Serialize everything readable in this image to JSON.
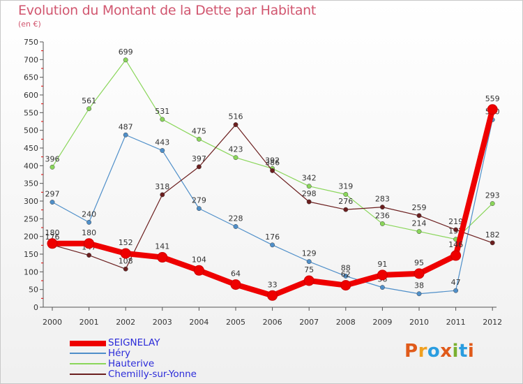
{
  "title": "Evolution du Montant de la Dette par Habitant",
  "subtitle": "(en €)",
  "logo": {
    "text": "Proxiti",
    "colors": [
      "#e05a1a",
      "#f0a020",
      "#2a9de0",
      "#e05a1a",
      "#7ab030",
      "#2a9de0",
      "#e05a1a"
    ]
  },
  "chart_data": {
    "type": "line",
    "title": "Evolution du Montant de la Dette par Habitant",
    "subtitle": "(en €)",
    "xlabel": "",
    "ylabel": "",
    "ylim": [
      0,
      750
    ],
    "ytick_step": 50,
    "grid": false,
    "legend_position": "bottom-left",
    "categories": [
      "2000",
      "2001",
      "2002",
      "2003",
      "2004",
      "2005",
      "2006",
      "2007",
      "2008",
      "2009",
      "2010",
      "2011",
      "2012"
    ],
    "y_ticks": [
      "0",
      "50",
      "100",
      "150",
      "200",
      "250",
      "300",
      "350",
      "400",
      "450",
      "500",
      "550",
      "600",
      "650",
      "700",
      "750"
    ],
    "series": [
      {
        "name": "Hauterive",
        "color": "#8ad65a",
        "values": [
          396,
          561,
          699,
          531,
          475,
          423,
          392,
          342,
          319,
          236,
          214,
          192,
          293
        ],
        "labels": [
          "396",
          "561",
          "699",
          "531",
          "475",
          "423",
          "392",
          "342",
          "319",
          "236",
          "214",
          "192",
          "293"
        ]
      },
      {
        "name": "Héry",
        "color": "#4f8fc9",
        "values": [
          297,
          240,
          487,
          443,
          279,
          228,
          176,
          129,
          88,
          56,
          38,
          47,
          530
        ],
        "labels": [
          "297",
          "240",
          "487",
          "443",
          "279",
          "228",
          "176",
          "129",
          "88",
          "56",
          "38",
          "47",
          "530"
        ]
      },
      {
        "name": "Chemilly-sur-Yonne",
        "color": "#6b1e1e",
        "values": [
          176,
          147,
          108,
          318,
          397,
          516,
          386,
          298,
          276,
          283,
          259,
          219,
          182
        ],
        "labels": [
          "176",
          "147",
          "108",
          "318",
          "397",
          "516",
          "386",
          "298",
          "276",
          "283",
          "259",
          "219",
          "182"
        ]
      },
      {
        "name": "SEIGNELAY",
        "color": "#ee0000",
        "values": [
          180,
          180,
          152,
          141,
          104,
          64,
          33,
          75,
          62,
          91,
          95,
          146,
          559
        ],
        "labels": [
          "180",
          "180",
          "152",
          "141",
          "104",
          "64",
          "33",
          "75",
          "62",
          "91",
          "95",
          "146",
          "559"
        ]
      }
    ]
  },
  "legend": [
    {
      "name": "SEIGNELAY",
      "color": "#ee0000"
    },
    {
      "name": "Héry",
      "color": "#4f8fc9"
    },
    {
      "name": "Hauterive",
      "color": "#8ad65a"
    },
    {
      "name": "Chemilly-sur-Yonne",
      "color": "#6b1e1e"
    }
  ]
}
